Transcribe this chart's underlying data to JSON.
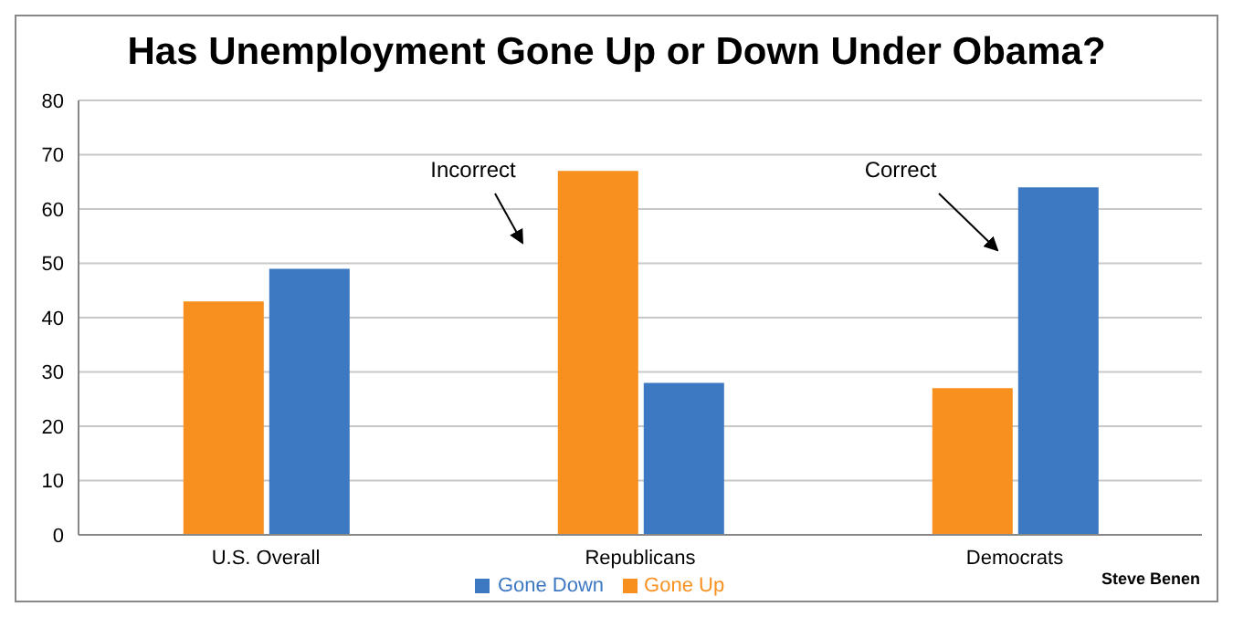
{
  "chart_data": {
    "type": "bar",
    "title": "Has Unemployment Gone Up or Down Under Obama?",
    "categories": [
      "U.S. Overall",
      "Republicans",
      "Democrats"
    ],
    "series": [
      {
        "name": "Gone Up",
        "color": "#f7901e",
        "values": [
          43,
          67,
          27
        ]
      },
      {
        "name": "Gone Down",
        "color": "#3d78c2",
        "values": [
          49,
          28,
          64
        ]
      }
    ],
    "ylim": [
      0,
      80
    ],
    "yticks": [
      0,
      10,
      20,
      30,
      40,
      50,
      60,
      70,
      80
    ],
    "grid": "y",
    "legend": "bottom",
    "annotations": [
      "Incorrect",
      "Correct",
      "Steve Benen"
    ]
  }
}
